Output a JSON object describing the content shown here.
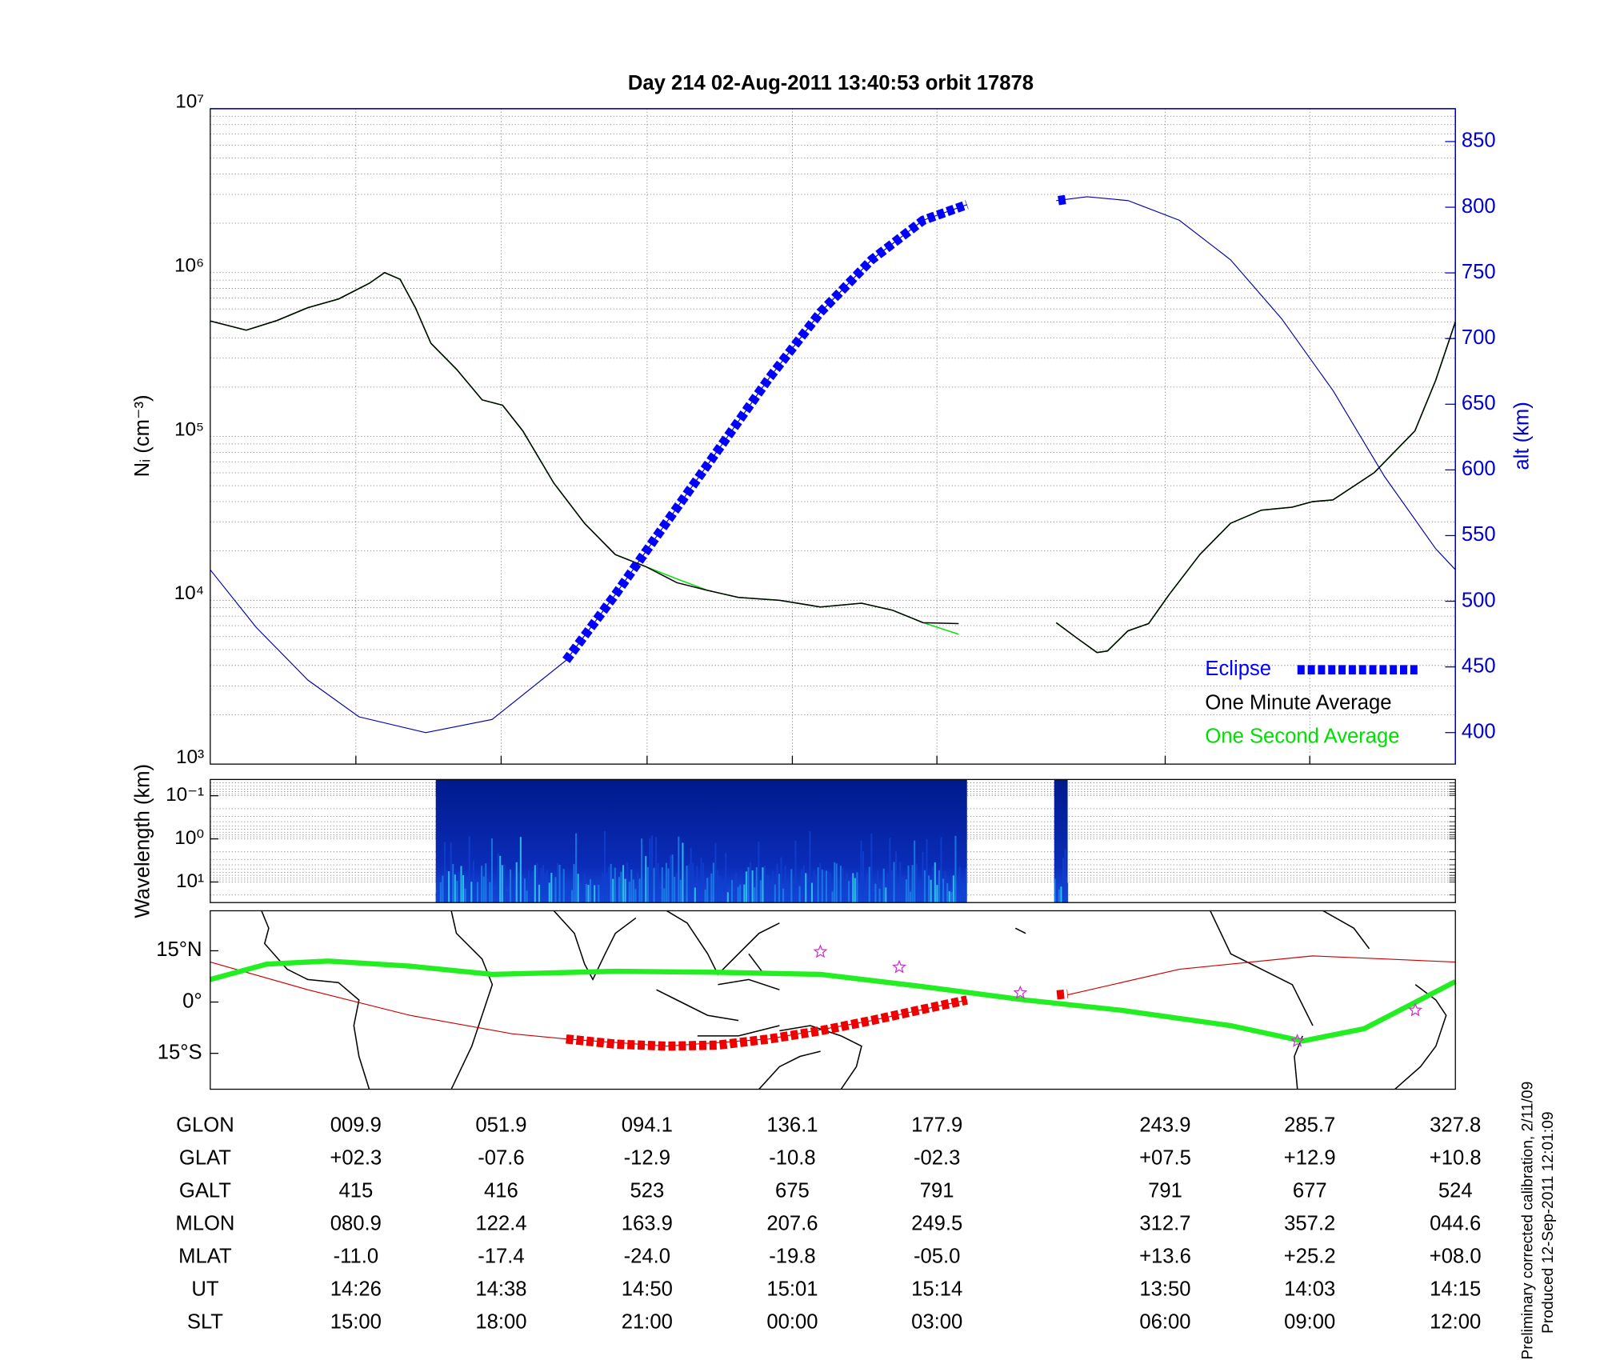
{
  "title": "Day 214  02-Aug-2011 13:40:53   orbit 17878",
  "chart_data": [
    {
      "type": "line",
      "ylabel": "Nᵢ (cm⁻³)",
      "y2label": "alt (km)",
      "log": true,
      "grid": true,
      "legend": "lower right",
      "xlim": [
        -32.2,
        327.8
      ],
      "xticks": [
        {
          "value": 9.9,
          "label": "009.9"
        },
        {
          "value": 51.9,
          "label": "051.9"
        },
        {
          "value": 94.1,
          "label": "094.1"
        },
        {
          "value": 136.1,
          "label": "136.1"
        },
        {
          "value": 177.9,
          "label": "177.9"
        },
        {
          "value": 243.9,
          "label": "243.9"
        },
        {
          "value": 285.7,
          "label": "285.7"
        },
        {
          "value": 327.8,
          "label": "327.8"
        }
      ],
      "ylim": [
        1000,
        10000000
      ],
      "yticks": [
        {
          "value": 1000,
          "label": "10³"
        },
        {
          "value": 10000,
          "label": "10⁴"
        },
        {
          "value": 100000,
          "label": "10⁵"
        },
        {
          "value": 1000000,
          "label": "10⁶"
        },
        {
          "value": 10000000,
          "label": "10⁷"
        }
      ],
      "y2lim": [
        376,
        875
      ],
      "y2ticks": [
        400,
        450,
        500,
        550,
        600,
        650,
        700,
        750,
        800,
        850
      ],
      "y2color": "#0000cc",
      "series": [
        {
          "axis": "y2",
          "color": "#0000aa",
          "x": [
            -32.2,
            -18.9,
            -4.0,
            10.8,
            30.1,
            49.3,
            70.7,
            84.9,
            99.7,
            114.6,
            129.4,
            144.2,
            159.0,
            173.9,
            186.6,
            null,
            212.4,
            221.3,
            233.2,
            248.0,
            262.8,
            277.6,
            292.5,
            307.3,
            322.1,
            327.8
          ],
          "values": [
            524,
            480,
            440,
            412,
            400,
            410,
            455,
            505,
            560,
            615,
            670,
            720,
            760,
            790,
            802,
            null,
            805,
            808,
            805,
            790,
            760,
            715,
            660,
            595,
            540,
            524
          ]
        },
        {
          "name": "One Second Average",
          "color": "#00e000",
          "x": [
            -32.2,
            -21.8,
            -12.9,
            -4.0,
            4.9,
            13.8,
            18.2,
            22.7,
            27.1,
            31.6,
            39.0,
            46.4,
            52.3,
            58.2,
            67.1,
            76.0,
            84.9,
            93.8,
            102.7,
            111.6,
            120.5,
            132.4,
            144.2,
            156.1,
            165.0,
            173.9,
            184.2,
            null,
            212.4,
            218.3,
            224.2,
            227.2,
            233.1,
            239.1,
            245.0,
            253.9,
            262.8,
            271.7,
            280.6,
            286.5,
            292.4,
            304.3,
            316.1,
            322.1,
            327.8
          ],
          "values": [
            506000,
            445000,
            510000,
            610000,
            690000,
            860000,
            1000000,
            910000,
            610000,
            370000,
            257000,
            167000,
            155000,
            108000,
            52000,
            29500,
            19000,
            16000,
            13500,
            11500,
            10400,
            10000,
            9100,
            9600,
            8700,
            7300,
            6200,
            null,
            7300,
            5900,
            4800,
            4900,
            6500,
            7200,
            10800,
            19000,
            29500,
            35500,
            37000,
            40000,
            41000,
            60000,
            108000,
            220000,
            500000
          ]
        },
        {
          "name": "One Minute Average",
          "color": "#000000",
          "x": [
            -32.2,
            -21.8,
            -12.9,
            -4.0,
            4.9,
            13.8,
            18.2,
            22.7,
            27.1,
            31.6,
            39.0,
            46.4,
            52.3,
            58.2,
            67.1,
            76.0,
            84.9,
            93.8,
            102.7,
            111.6,
            120.5,
            132.4,
            144.2,
            156.1,
            165.0,
            173.9,
            184.2,
            null,
            212.4,
            218.3,
            224.2,
            227.2,
            233.1,
            239.1,
            245.0,
            253.9,
            262.8,
            271.7,
            280.6,
            286.5,
            292.4,
            304.3,
            316.1,
            322.1,
            327.8
          ],
          "values": [
            506000,
            445000,
            510000,
            610000,
            690000,
            860000,
            1000000,
            910000,
            610000,
            370000,
            257000,
            167000,
            155000,
            108000,
            52000,
            29500,
            19000,
            16000,
            12800,
            11500,
            10400,
            10000,
            9100,
            9600,
            8700,
            7300,
            7200,
            null,
            7300,
            5900,
            4800,
            4900,
            6500,
            7200,
            10800,
            19000,
            29500,
            35500,
            37000,
            40000,
            41000,
            60000,
            108000,
            220000,
            500000
          ]
        },
        {
          "name": "Eclipse",
          "axis": "y2",
          "color": "#0000ff",
          "dashed": true,
          "x": [
            70.7,
            84.9,
            99.7,
            114.6,
            129.4,
            144.2,
            159.0,
            173.9,
            186.6,
            null,
            213.0,
            215.4
          ],
          "values": [
            455,
            505,
            560,
            615,
            670,
            720,
            760,
            790,
            802,
            null,
            805,
            806
          ]
        }
      ]
    },
    {
      "type": "spectrogram",
      "ylabel": "Wavelength (km)",
      "log": true,
      "reversed": true,
      "xlim": [
        -32.2,
        327.8
      ],
      "ylim": [
        0.042,
        30
      ],
      "yticks": [
        {
          "value": 0.1,
          "label": "10⁻¹"
        },
        {
          "value": 1,
          "label": "10⁰"
        },
        {
          "value": 10,
          "label": "10¹"
        }
      ],
      "spans": [
        [
          33.0,
          186.6
        ],
        [
          211.8,
          215.7
        ]
      ]
    },
    {
      "type": "map",
      "xlim": [
        -32.2,
        327.8
      ],
      "ylim": [
        -25.5,
        26.7
      ],
      "yticks": [
        {
          "value": 15,
          "label": "15°N"
        },
        {
          "value": 0,
          "label": "0°"
        },
        {
          "value": -15,
          "label": "15°S"
        }
      ],
      "series": [
        {
          "color": "#cc0000",
          "x": [
            -32.2,
            -4.0,
            25.6,
            55.2,
            70.7,
            99.7,
            129.4,
            159.0,
            186.6,
            null,
            215.7,
            248.0,
            286.5,
            307.3,
            327.8
          ],
          "values": [
            11.7,
            3.6,
            -3.9,
            -9.3,
            -10.8,
            -12.9,
            -10.8,
            -5.4,
            0.6,
            null,
            2.1,
            9.6,
            13.5,
            12.6,
            11.7
          ]
        },
        {
          "color": "#22ee22",
          "width": 5,
          "x": [
            -32.2,
            -15.9,
            1.9,
            25.6,
            49.3,
            84.9,
            114.6,
            144.2,
            173.9,
            203.5,
            231.2,
            262.8,
            283.6,
            301.4,
            327.8
          ],
          "values": [
            6.6,
            11.1,
            12.0,
            10.5,
            8.1,
            9.0,
            8.7,
            8.1,
            4.5,
            0.6,
            -2.4,
            -6.9,
            -11.4,
            -7.8,
            6.0
          ]
        },
        {
          "color": "#ee0000",
          "dashed": true,
          "x": [
            70.7,
            84.9,
            99.7,
            114.6,
            129.4,
            144.2,
            159.0,
            173.9,
            186.6,
            null,
            212.6,
            215.7
          ],
          "values": [
            -10.8,
            -12.3,
            -12.9,
            -12.6,
            -10.8,
            -8.4,
            -5.4,
            -2.1,
            0.6,
            null,
            2.1,
            2.4
          ]
        },
        {
          "color": "#cc33cc",
          "marker": "star",
          "x": [
            144.2,
            167.0,
            202.0,
            282.1,
            316.2
          ],
          "values": [
            14.7,
            10.2,
            2.7,
            -11.4,
            -2.4
          ]
        }
      ]
    }
  ],
  "table": {
    "x_label": "GLON",
    "rows": [
      {
        "label": "GLAT",
        "cells": [
          "+02.3",
          "-07.6",
          "-12.9",
          "-10.8",
          "-02.3",
          "+07.5",
          "+12.9",
          "+10.8"
        ]
      },
      {
        "label": "GALT",
        "cells": [
          "415",
          "416",
          "523",
          "675",
          "791",
          "791",
          "677",
          "524"
        ]
      },
      {
        "label": "MLON",
        "cells": [
          "080.9",
          "122.4",
          "163.9",
          "207.6",
          "249.5",
          "312.7",
          "357.2",
          "044.6"
        ]
      },
      {
        "label": "MLAT",
        "cells": [
          "-11.0",
          "-17.4",
          "-24.0",
          "-19.8",
          "-05.0",
          "+13.6",
          "+25.2",
          "+08.0"
        ]
      },
      {
        "label": "UT",
        "cells": [
          "14:26",
          "14:38",
          "14:50",
          "15:01",
          "15:14",
          "13:50",
          "14:03",
          "14:15"
        ]
      },
      {
        "label": "SLT",
        "cells": [
          "15:00",
          "18:00",
          "21:00",
          "00:00",
          "03:00",
          "06:00",
          "09:00",
          "12:00"
        ]
      }
    ]
  },
  "footer": [
    "Preliminary corrected calibration, 2/11/09",
    "Produced 12-Sep-2011 12:01:09"
  ]
}
